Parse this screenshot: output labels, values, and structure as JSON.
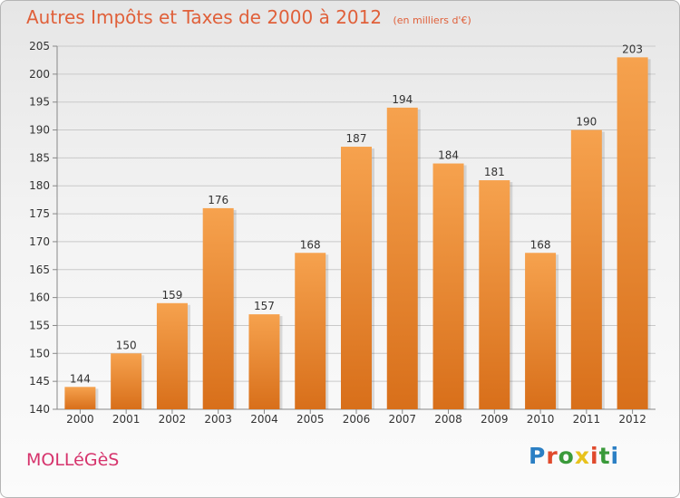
{
  "header": {
    "title": "Autres Impôts et Taxes de 2000 à 2012",
    "unit": "(en milliers d'€)"
  },
  "footer": {
    "commune": "MOLLéGèS",
    "logo": {
      "text": "Proxiti",
      "letter_colors": [
        "#2b7fc4",
        "#e04a2c",
        "#3a9a3a",
        "#e8c21c",
        "#e04a2c",
        "#3a9a3a",
        "#2b7fc4"
      ]
    }
  },
  "chart_data": {
    "type": "bar",
    "title": "Autres Impôts et Taxes de 2000 à 2012",
    "xlabel": "",
    "ylabel": "",
    "categories": [
      "2000",
      "2001",
      "2002",
      "2003",
      "2004",
      "2005",
      "2006",
      "2007",
      "2008",
      "2009",
      "2010",
      "2011",
      "2012"
    ],
    "values": [
      144,
      150,
      159,
      176,
      157,
      168,
      187,
      194,
      184,
      181,
      168,
      190,
      203
    ],
    "ylim": [
      140,
      205
    ],
    "yticks": [
      140,
      145,
      150,
      155,
      160,
      165,
      170,
      175,
      180,
      185,
      190,
      195,
      200,
      205
    ],
    "grid": true,
    "colors": {
      "bar_top": "#f6a24e",
      "bar_bottom": "#d86f1a",
      "grid": "#c9c9c9",
      "text": "#333333"
    }
  }
}
